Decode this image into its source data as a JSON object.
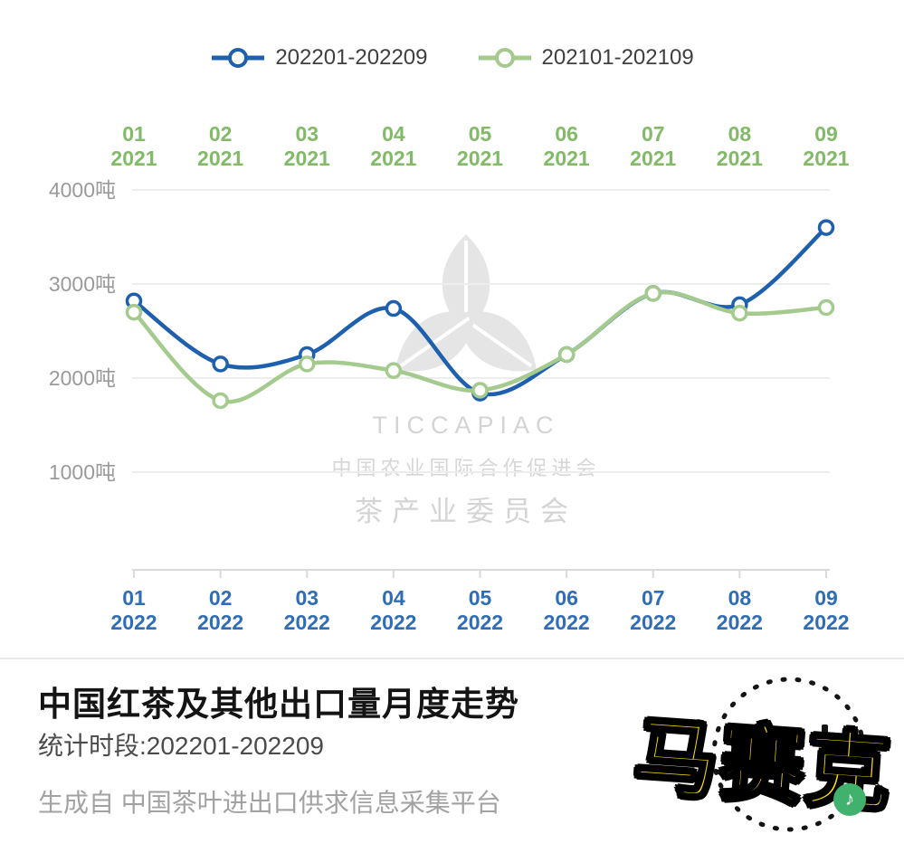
{
  "colors": {
    "blue_line": "#1e60ae",
    "green_line": "#a4ca8e",
    "blue_text": "#2f6db6",
    "green_text": "#82ba68",
    "mosaic_yellow": "#ffe000"
  },
  "legend": [
    {
      "label": "202201-202209"
    },
    {
      "label": "202101-202109"
    }
  ],
  "chart_data": {
    "type": "line",
    "unit": "吨",
    "categories": [
      "01",
      "02",
      "03",
      "04",
      "05",
      "06",
      "07",
      "08",
      "09"
    ],
    "top_axis_year": "2021",
    "bottom_axis_year": "2022",
    "y_ticks": [
      4000,
      3000,
      2000,
      1000
    ],
    "ylim": [
      1000,
      4000
    ],
    "grid": true,
    "legend_position": "top",
    "series": [
      {
        "name": "202201-202209",
        "color": "#1e60ae",
        "values": [
          2820,
          2150,
          2250,
          2740,
          1840,
          2250,
          2900,
          2780,
          3600
        ]
      },
      {
        "name": "202101-202109",
        "color": "#a4ca8e",
        "values": [
          2700,
          1760,
          2150,
          2080,
          1870,
          2250,
          2900,
          2690,
          2750
        ]
      }
    ]
  },
  "watermark": {
    "brand": "TICCAPIAC",
    "line1": "中国农业国际合作促进会",
    "line2": "茶产业委员会"
  },
  "footer": {
    "title": "中国红茶及其他出口量月度走势",
    "period": "统计时段:202201-202209",
    "source": "生成自 中国茶叶进出口供求信息采集平台"
  },
  "mosaic": {
    "label": "马赛克"
  }
}
